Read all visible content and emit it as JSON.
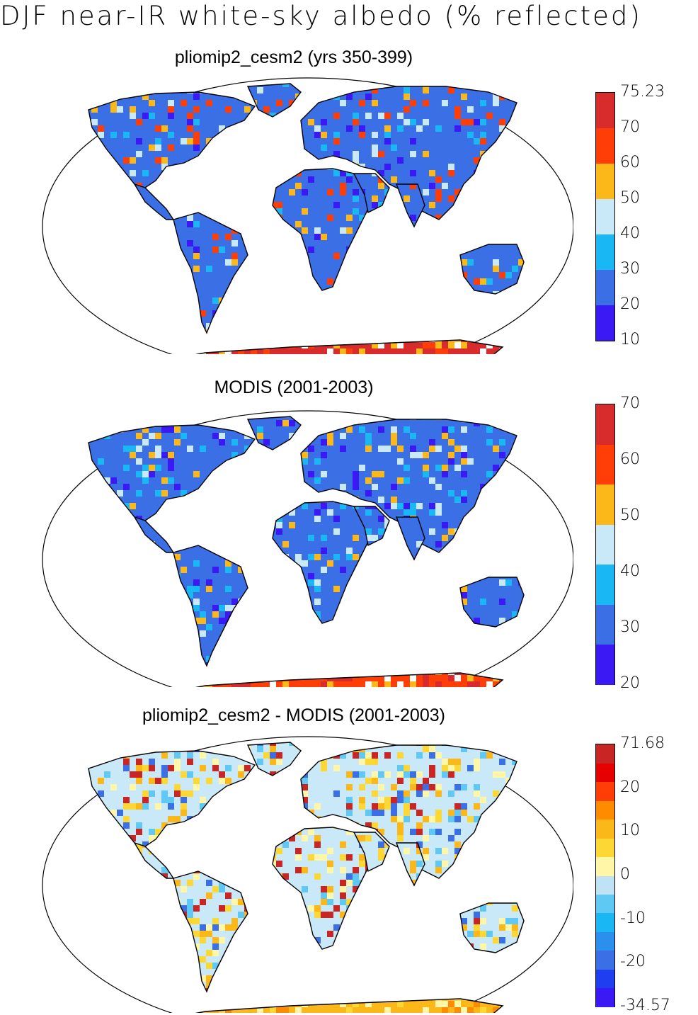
{
  "figure_title": "DJF near-IR white-sky albedo (% reflected)",
  "panels": [
    {
      "title": "pliomip2_cesm2 (yrs 350-399)",
      "colorbar": {
        "colors": [
          "#3a19f5",
          "#3b6fe6",
          "#19b8f5",
          "#c9e8f8",
          "#fbb818",
          "#ff3e07",
          "#d82c2c"
        ],
        "labels": [
          "10",
          "20",
          "30",
          "40",
          "50",
          "60",
          "70",
          "75.23"
        ]
      }
    },
    {
      "title": "MODIS (2001-2003)",
      "colorbar": {
        "colors": [
          "#3a19f5",
          "#3b6fe6",
          "#19b8f5",
          "#c9e8f8",
          "#fbb818",
          "#ff3e07",
          "#d82c2c"
        ],
        "labels": [
          "20",
          "30",
          "40",
          "50",
          "60",
          "70"
        ]
      }
    },
    {
      "title": "pliomip2_cesm2 - MODIS (2001-2003)",
      "colorbar": {
        "colors": [
          "#3a19f5",
          "#1f3ef0",
          "#3a6fe6",
          "#2b8fee",
          "#19b8f5",
          "#5fc8f4",
          "#bfe3f5",
          "#fff6a8",
          "#fdd835",
          "#fbb818",
          "#ff8c00",
          "#ff3e07",
          "#e60000",
          "#c92525"
        ],
        "labels": [
          "-34.57",
          "-20",
          "-10",
          "0",
          "10",
          "20",
          "71.68"
        ]
      }
    }
  ],
  "map_fill_colors": {
    "panel1_land": "#3b6fe6",
    "panel2_land": "#3b6fe6",
    "panel3_land": "#c9e8f8",
    "antarctica_1": "#d82c2c",
    "antarctica_2": "#ff3e07",
    "antarctica_3": "#fbb818"
  }
}
